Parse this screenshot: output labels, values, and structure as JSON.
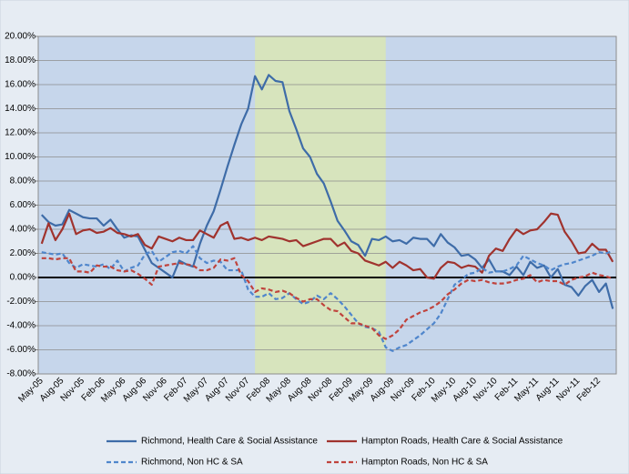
{
  "chart_data": {
    "type": "line",
    "categories": [
      "May-05",
      null,
      null,
      "Aug-05",
      null,
      null,
      "Nov-05",
      null,
      null,
      "Feb-06",
      null,
      null,
      "May-06",
      null,
      null,
      "Aug-06",
      null,
      null,
      "Nov-06",
      null,
      null,
      "Feb-07",
      null,
      null,
      "May-07",
      null,
      null,
      "Aug-07",
      null,
      null,
      "Nov-07",
      null,
      null,
      "Feb-08",
      null,
      null,
      "May-08",
      null,
      null,
      "Aug-08",
      null,
      null,
      "Nov-08",
      null,
      null,
      "Feb-09",
      null,
      null,
      "May-09",
      null,
      null,
      "Aug-09",
      null,
      null,
      "Nov-09",
      null,
      null,
      "Feb-10",
      null,
      null,
      "May-10",
      null,
      null,
      "Aug-10",
      null,
      null,
      "Nov-10",
      null,
      null,
      "Feb-11",
      null,
      null,
      "May-11",
      null,
      null,
      "Aug-11",
      null,
      null,
      "Nov-11",
      null,
      null,
      "Feb-12",
      null,
      null
    ],
    "series": [
      {
        "name": "Richmond, Health Care & Social Assistance",
        "color": "#3e6ca8",
        "dashed": false,
        "values": [
          5.2,
          4.6,
          4.3,
          4.4,
          5.6,
          5.3,
          5.0,
          4.9,
          4.9,
          4.3,
          4.8,
          4.0,
          3.3,
          3.5,
          3.4,
          2.3,
          1.2,
          0.8,
          0.4,
          0.0,
          1.4,
          1.1,
          0.9,
          2.8,
          4.3,
          5.5,
          7.3,
          9.2,
          11.0,
          12.7,
          14.0,
          16.7,
          15.6,
          16.8,
          16.3,
          16.2,
          13.8,
          12.3,
          10.7,
          10.0,
          8.6,
          7.8,
          6.3,
          4.7,
          3.9,
          3.0,
          2.7,
          1.8,
          3.2,
          3.1,
          3.4,
          3.0,
          3.1,
          2.8,
          3.3,
          3.2,
          3.2,
          2.6,
          3.6,
          2.9,
          2.5,
          1.8,
          1.9,
          1.5,
          0.8,
          1.5,
          0.5,
          0.5,
          0.2,
          0.9,
          0.2,
          1.3,
          0.8,
          1.0,
          0.0,
          0.7,
          -0.6,
          -0.8,
          -1.5,
          -0.7,
          -0.2,
          -1.2,
          -0.5,
          -2.6
        ]
      },
      {
        "name": "Hampton Roads, Health Care & Social Assistance",
        "color": "#a0332e",
        "dashed": false,
        "values": [
          2.8,
          4.5,
          3.1,
          4.0,
          5.3,
          3.6,
          3.9,
          4.0,
          3.7,
          3.8,
          4.1,
          3.7,
          3.6,
          3.4,
          3.6,
          2.7,
          2.4,
          3.4,
          3.2,
          3.0,
          3.3,
          3.1,
          3.1,
          3.9,
          3.6,
          3.3,
          4.3,
          4.6,
          3.2,
          3.3,
          3.1,
          3.3,
          3.1,
          3.4,
          3.3,
          3.2,
          3.0,
          3.1,
          2.6,
          2.8,
          3.0,
          3.2,
          3.2,
          2.6,
          2.9,
          2.2,
          2.0,
          1.4,
          1.2,
          1.0,
          1.3,
          0.8,
          1.3,
          1.0,
          0.6,
          0.7,
          0.0,
          -0.1,
          0.8,
          1.3,
          1.2,
          0.8,
          1.0,
          0.9,
          0.4,
          1.8,
          2.4,
          2.2,
          3.2,
          4.0,
          3.6,
          3.9,
          4.0,
          4.6,
          5.3,
          5.2,
          3.8,
          3.0,
          2.0,
          2.1,
          2.8,
          2.3,
          2.3,
          1.3
        ]
      },
      {
        "name": "Richmond, Non HC & SA",
        "color": "#4f86cc",
        "dashed": true,
        "values": [
          2.1,
          2.0,
          1.9,
          2.0,
          1.2,
          0.8,
          1.1,
          1.0,
          0.9,
          1.1,
          0.7,
          1.4,
          0.5,
          0.8,
          1.0,
          1.9,
          2.2,
          1.3,
          1.7,
          2.1,
          2.2,
          2.0,
          2.6,
          1.6,
          1.2,
          1.4,
          1.3,
          0.6,
          0.6,
          0.6,
          -1.0,
          -1.6,
          -1.6,
          -1.3,
          -1.8,
          -1.7,
          -1.3,
          -1.8,
          -2.2,
          -2.0,
          -1.5,
          -1.8,
          -1.3,
          -1.8,
          -2.4,
          -3.1,
          -3.8,
          -4.1,
          -4.2,
          -4.5,
          -5.8,
          -6.1,
          -5.8,
          -5.6,
          -5.2,
          -4.8,
          -4.3,
          -3.8,
          -3.0,
          -1.8,
          -0.6,
          -0.2,
          0.3,
          0.4,
          0.8,
          0.4,
          0.5,
          0.5,
          0.7,
          1.0,
          1.8,
          1.5,
          1.2,
          1.0,
          0.6,
          0.9,
          1.1,
          1.2,
          1.4,
          1.6,
          1.8,
          2.1,
          2.0,
          2.2
        ]
      },
      {
        "name": "Hampton Roads, Non HC & SA",
        "color": "#c0433c",
        "dashed": true,
        "values": [
          1.6,
          1.6,
          1.5,
          1.6,
          1.6,
          0.5,
          0.5,
          0.4,
          1.0,
          0.9,
          0.9,
          0.6,
          0.5,
          0.6,
          0.3,
          -0.1,
          -0.6,
          0.9,
          1.0,
          1.1,
          1.2,
          1.1,
          1.0,
          0.6,
          0.6,
          0.8,
          1.5,
          1.4,
          1.6,
          0.2,
          -0.3,
          -1.2,
          -0.9,
          -1.0,
          -1.2,
          -1.1,
          -1.3,
          -1.7,
          -2.0,
          -1.8,
          -1.8,
          -2.3,
          -2.7,
          -2.8,
          -3.3,
          -3.8,
          -3.8,
          -4.0,
          -4.2,
          -4.8,
          -5.1,
          -4.8,
          -4.3,
          -3.5,
          -3.2,
          -2.9,
          -2.7,
          -2.4,
          -2.0,
          -1.4,
          -1.0,
          -0.5,
          -0.2,
          -0.3,
          -0.2,
          -0.4,
          -0.5,
          -0.5,
          -0.4,
          -0.2,
          -0.1,
          0.2,
          -0.4,
          -0.2,
          -0.3,
          -0.3,
          -0.6,
          -0.2,
          0.0,
          0.1,
          0.4,
          0.2,
          0.1,
          -0.1
        ]
      }
    ],
    "ylim": [
      -8,
      20
    ],
    "yticks": [
      {
        "value": -8,
        "label": "-8.00%"
      },
      {
        "value": -6,
        "label": "-6.00%"
      },
      {
        "value": -4,
        "label": "-4.00%"
      },
      {
        "value": -2,
        "label": "-2.00%"
      },
      {
        "value": 0,
        "label": "0.00%"
      },
      {
        "value": 2,
        "label": "2.00%"
      },
      {
        "value": 4,
        "label": "4.00%"
      },
      {
        "value": 6,
        "label": "6.00%"
      },
      {
        "value": 8,
        "label": "8.00%"
      },
      {
        "value": 10,
        "label": "10.00%"
      },
      {
        "value": 12,
        "label": "12.00%"
      },
      {
        "value": 14,
        "label": "14.00%"
      },
      {
        "value": 16,
        "label": "16.00%"
      },
      {
        "value": 18,
        "label": "18.00%"
      },
      {
        "value": 20,
        "label": "20.00%"
      }
    ],
    "grid": true,
    "shade": {
      "from": 31,
      "to": 50,
      "color": "#d7e4bd"
    },
    "legend": "bottom"
  }
}
